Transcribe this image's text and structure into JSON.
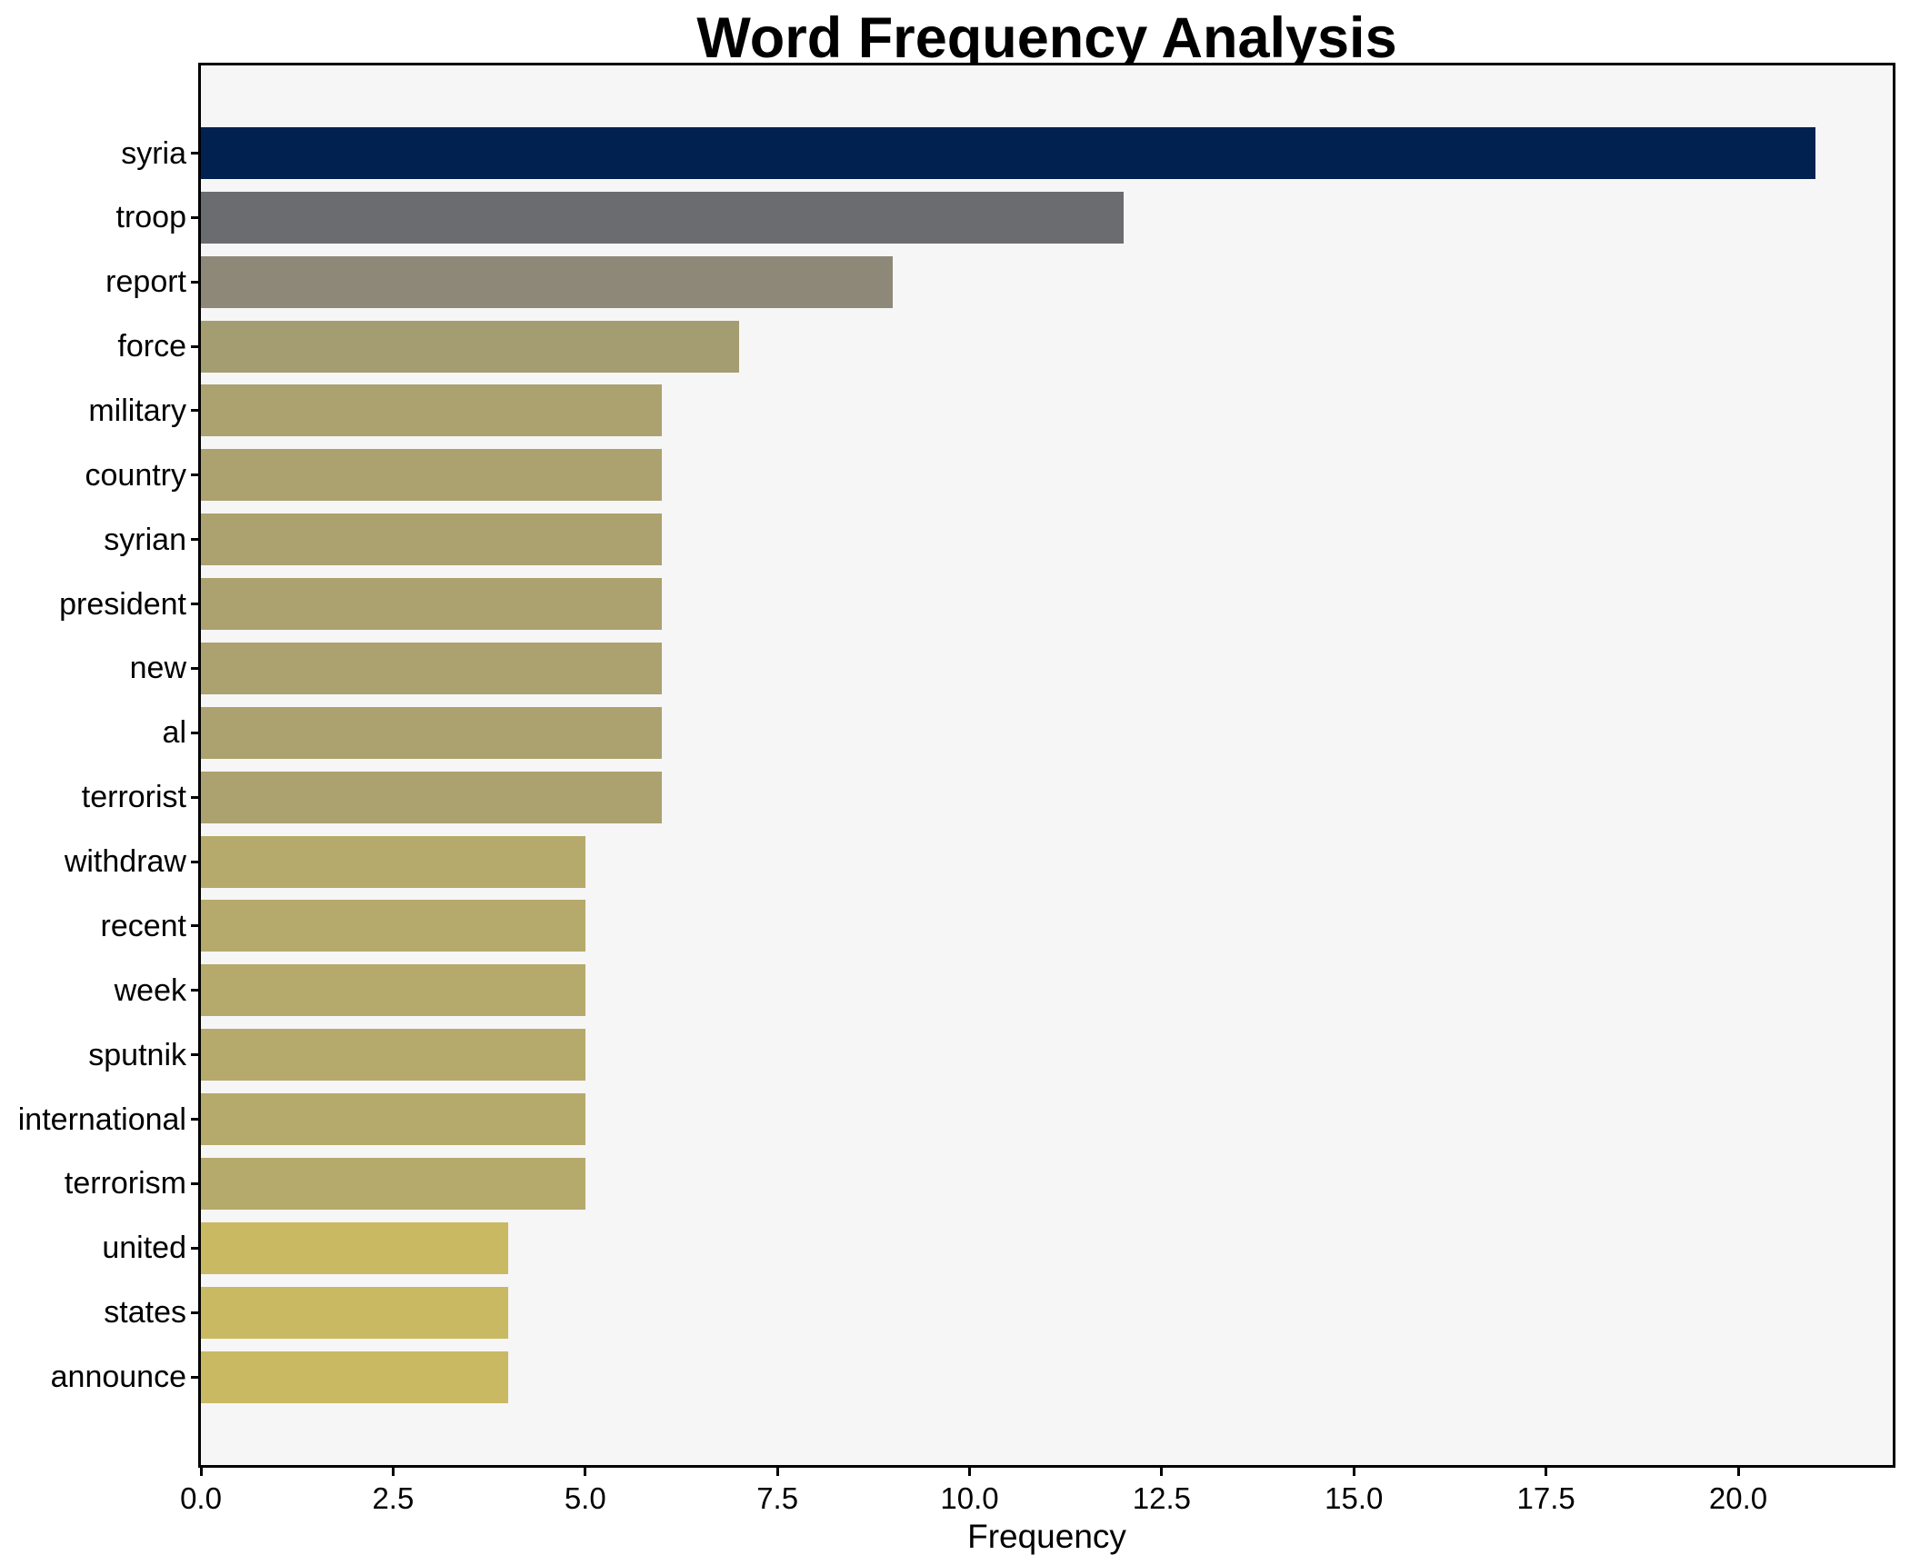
{
  "title": "Word Frequency Analysis",
  "chart_data": {
    "type": "bar",
    "orientation": "horizontal",
    "title": "Word Frequency Analysis",
    "xlabel": "Frequency",
    "ylabel": "",
    "categories": [
      "syria",
      "troop",
      "report",
      "force",
      "military",
      "country",
      "syrian",
      "president",
      "new",
      "al",
      "terrorist",
      "withdraw",
      "recent",
      "week",
      "sputnik",
      "international",
      "terrorism",
      "united",
      "states",
      "announce"
    ],
    "values": [
      21,
      12,
      9,
      7,
      6,
      6,
      6,
      6,
      6,
      6,
      6,
      5,
      5,
      5,
      5,
      5,
      5,
      4,
      4,
      4
    ],
    "bar_colors": [
      "#012150",
      "#6b6c70",
      "#8e8878",
      "#a59d72",
      "#aca26f",
      "#aca26f",
      "#aca26f",
      "#aca26f",
      "#aca26f",
      "#aca26f",
      "#aca26f",
      "#b5aa6b",
      "#b5aa6b",
      "#b5aa6b",
      "#b5aa6b",
      "#b5aa6b",
      "#b5aa6b",
      "#c9b963",
      "#c9b963",
      "#c9b963"
    ],
    "x_tick_labels": [
      "0.0",
      "2.5",
      "5.0",
      "7.5",
      "10.0",
      "12.5",
      "15.0",
      "17.5",
      "20.0"
    ],
    "x_tick_values": [
      0,
      2.5,
      5,
      7.5,
      10,
      12.5,
      15,
      17.5,
      20
    ],
    "xlim": [
      0,
      22.05
    ],
    "grid": false,
    "legend_position": "none",
    "plot_background": "#f6f6f7",
    "figure_background": "#ffffff",
    "spine_color": "#000000",
    "colormap": "cividis"
  }
}
